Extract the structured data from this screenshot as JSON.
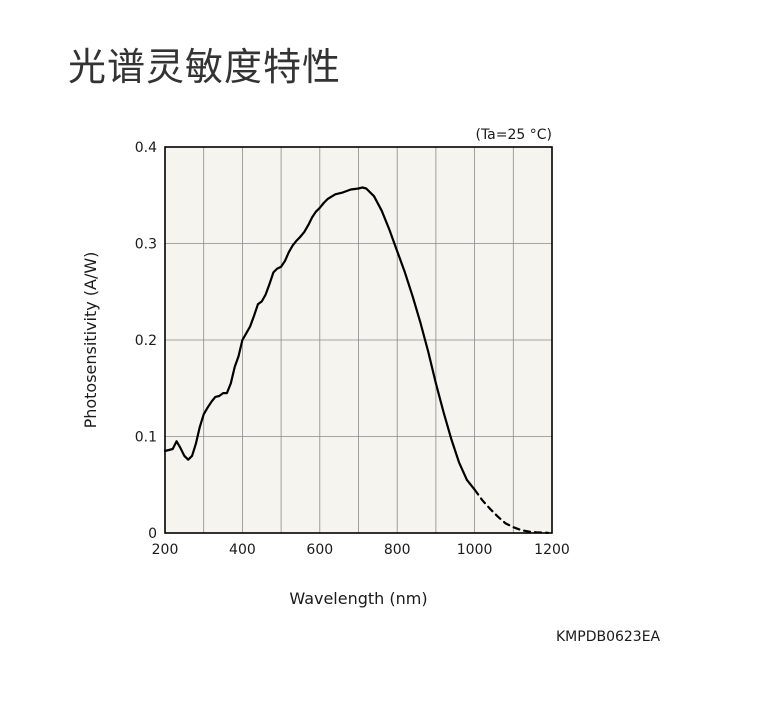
{
  "page_title": "光谱灵敏度特性",
  "figure_code": "KMPDB0623EA",
  "chart_data": {
    "type": "line",
    "title": "",
    "xlabel": "Wavelength (nm)",
    "ylabel": "Photosensitivity (A/W)",
    "annotation": "(Ta=25 °C)",
    "xlim": [
      200,
      1200
    ],
    "ylim": [
      0,
      0.4
    ],
    "x_ticks": [
      200,
      400,
      600,
      800,
      1000,
      1200
    ],
    "x_tick_labels": [
      "200",
      "400",
      "600",
      "800",
      "1000",
      "1200"
    ],
    "y_ticks": [
      0,
      0.1,
      0.2,
      0.3,
      0.4
    ],
    "y_tick_labels": [
      "0",
      "0.1",
      "0.2",
      "0.3",
      "0.4"
    ],
    "grid": true,
    "background_color": "#f5f4ee",
    "line_color": "#000000",
    "series": [
      {
        "style": "solid",
        "x": [
          200,
          220,
          230,
          240,
          250,
          260,
          270,
          280,
          290,
          300,
          310,
          320,
          330,
          340,
          350,
          360,
          370,
          380,
          390,
          400,
          410,
          420,
          430,
          440,
          450,
          460,
          470,
          480,
          490,
          500,
          510,
          520,
          530,
          540,
          550,
          560,
          570,
          580,
          590,
          600,
          610,
          620,
          640,
          660,
          680,
          700,
          710,
          720,
          740,
          760,
          780,
          800,
          820,
          840,
          860,
          880,
          900,
          920,
          940,
          960,
          980,
          1000
        ],
        "y": [
          0.085,
          0.087,
          0.095,
          0.088,
          0.08,
          0.076,
          0.08,
          0.093,
          0.11,
          0.123,
          0.13,
          0.136,
          0.141,
          0.142,
          0.145,
          0.145,
          0.155,
          0.172,
          0.183,
          0.2,
          0.207,
          0.214,
          0.225,
          0.237,
          0.24,
          0.247,
          0.258,
          0.27,
          0.274,
          0.276,
          0.282,
          0.291,
          0.298,
          0.303,
          0.307,
          0.312,
          0.319,
          0.327,
          0.333,
          0.337,
          0.342,
          0.346,
          0.351,
          0.353,
          0.356,
          0.357,
          0.358,
          0.357,
          0.349,
          0.334,
          0.314,
          0.292,
          0.27,
          0.245,
          0.218,
          0.188,
          0.155,
          0.125,
          0.097,
          0.073,
          0.055,
          0.045
        ]
      },
      {
        "style": "dashed",
        "x": [
          1000,
          1020,
          1040,
          1060,
          1080,
          1100,
          1120,
          1140,
          1160,
          1180,
          1190
        ],
        "y": [
          0.045,
          0.034,
          0.025,
          0.017,
          0.01,
          0.006,
          0.003,
          0.0015,
          0.0007,
          0.0003,
          0.0002
        ]
      }
    ]
  }
}
